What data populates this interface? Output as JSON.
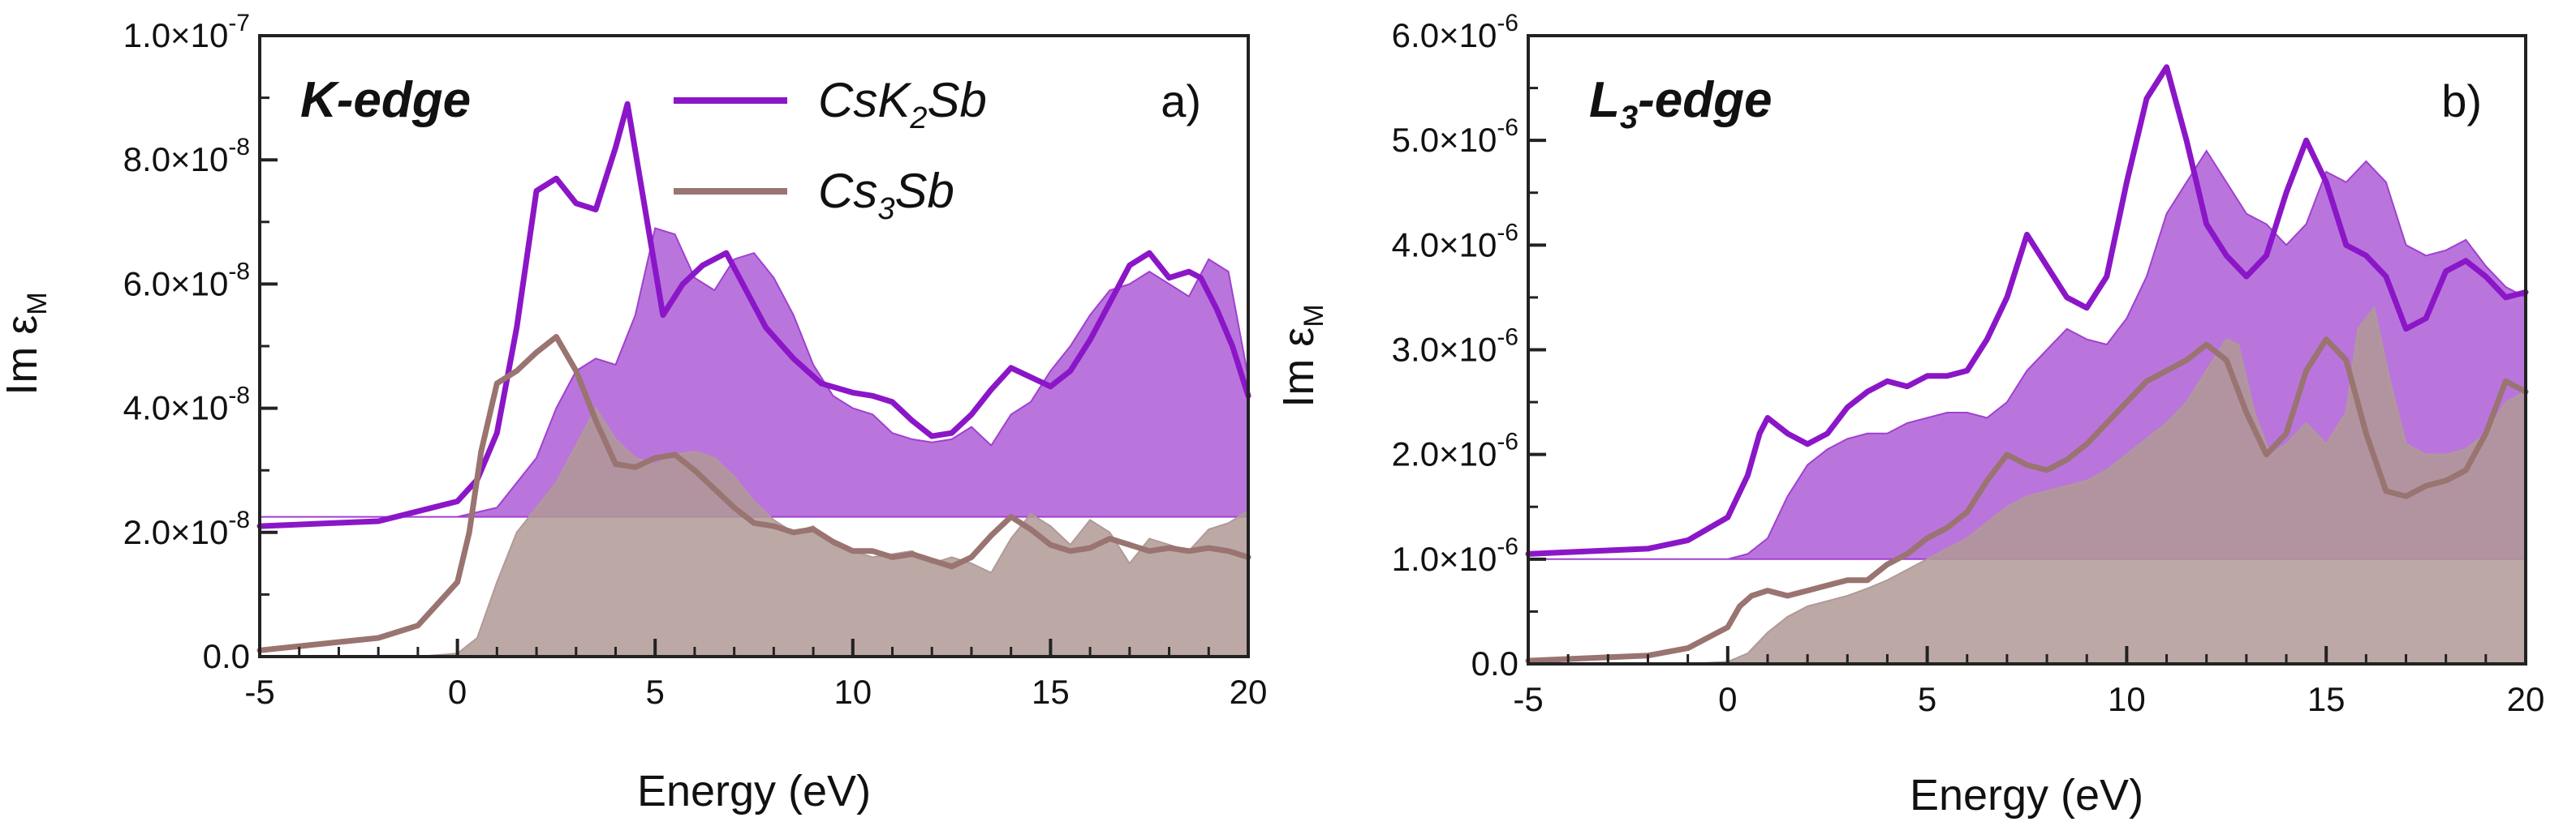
{
  "chart_data": [
    {
      "type": "line",
      "panel_label": "a)",
      "edge_label": {
        "main": "K",
        "sub": "",
        "rest": "-edge"
      },
      "xlabel": "Energy (eV)",
      "ylabel": {
        "main": "Im ε",
        "sub": "M"
      },
      "xlim": [
        -5,
        20
      ],
      "ylim": [
        0,
        1e-07
      ],
      "xticks": [
        -5,
        0,
        5,
        10,
        15,
        20
      ],
      "ytick_labels": [
        {
          "mant": "0.0",
          "exp": ""
        },
        {
          "mant": "2.0×10",
          "exp": "-8"
        },
        {
          "mant": "4.0×10",
          "exp": "-8"
        },
        {
          "mant": "6.0×10",
          "exp": "-8"
        },
        {
          "mant": "8.0×10",
          "exp": "-8"
        },
        {
          "mant": "1.0×10",
          "exp": "-7"
        }
      ],
      "legend": [
        {
          "label_parts": [
            [
              "Cs",
              ""
            ],
            [
              "K",
              ""
            ],
            [
              "2",
              "sub"
            ],
            [
              "Sb",
              ""
            ]
          ],
          "color": "#8B16C8"
        },
        {
          "label_parts": [
            [
              "Cs",
              ""
            ],
            [
              "3",
              "sub"
            ],
            [
              "Sb",
              ""
            ]
          ],
          "color": "#9A7470"
        }
      ],
      "series": [
        {
          "name": "CsK2Sb (line)",
          "kind": "line",
          "color": "#8B16C8",
          "x": [
            -5,
            -2,
            0,
            0.5,
            1,
            1.5,
            2,
            2.5,
            3,
            3.5,
            4,
            4.3,
            4.8,
            5.2,
            5.7,
            6.2,
            6.8,
            7.3,
            7.8,
            8.5,
            9.2,
            10,
            10.5,
            11,
            11.5,
            12,
            12.5,
            13,
            13.5,
            14,
            14.5,
            15,
            15.5,
            16,
            16.5,
            17,
            17.5,
            18,
            18.5,
            18.8,
            19.2,
            19.6,
            20
          ],
          "y": [
            2.1e-08,
            2.18e-08,
            2.5e-08,
            2.85e-08,
            3.6e-08,
            5.3e-08,
            7.5e-08,
            7.7e-08,
            7.3e-08,
            7.2e-08,
            8.2e-08,
            8.9e-08,
            7e-08,
            5.5e-08,
            6e-08,
            6.3e-08,
            6.5e-08,
            5.9e-08,
            5.3e-08,
            4.8e-08,
            4.4e-08,
            4.25e-08,
            4.2e-08,
            4.1e-08,
            3.8e-08,
            3.55e-08,
            3.6e-08,
            3.9e-08,
            4.3e-08,
            4.65e-08,
            4.5e-08,
            4.35e-08,
            4.6e-08,
            5.1e-08,
            5.7e-08,
            6.3e-08,
            6.5e-08,
            6.1e-08,
            6.2e-08,
            6.1e-08,
            5.6e-08,
            5e-08,
            4.2e-08
          ]
        },
        {
          "name": "Cs3Sb (line)",
          "kind": "line",
          "color": "#9A7470",
          "x": [
            -5,
            -2,
            -1,
            0,
            0.3,
            0.6,
            1,
            1.5,
            2,
            2.5,
            3,
            3.5,
            4,
            4.5,
            5,
            5.5,
            6,
            6.5,
            7,
            7.5,
            8,
            8.5,
            9,
            9.5,
            10,
            10.5,
            11,
            11.5,
            12,
            12.5,
            13,
            13.5,
            14,
            14.5,
            15,
            15.5,
            16,
            16.5,
            17,
            17.5,
            18,
            18.5,
            19,
            19.5,
            20
          ],
          "y": [
            1e-09,
            3e-09,
            5e-09,
            1.2e-08,
            2e-08,
            3.3e-08,
            4.4e-08,
            4.6e-08,
            4.9e-08,
            5.15e-08,
            4.6e-08,
            3.8e-08,
            3.1e-08,
            3.05e-08,
            3.2e-08,
            3.25e-08,
            3e-08,
            2.7e-08,
            2.4e-08,
            2.15e-08,
            2.1e-08,
            2e-08,
            2.05e-08,
            1.85e-08,
            1.7e-08,
            1.7e-08,
            1.6e-08,
            1.65e-08,
            1.55e-08,
            1.45e-08,
            1.6e-08,
            1.95e-08,
            2.25e-08,
            2.05e-08,
            1.8e-08,
            1.7e-08,
            1.75e-08,
            1.9e-08,
            1.8e-08,
            1.7e-08,
            1.75e-08,
            1.7e-08,
            1.75e-08,
            1.7e-08,
            1.6e-08
          ]
        },
        {
          "name": "CsK2Sb (shaded)",
          "kind": "area",
          "color": "#A040D0",
          "baseline": 2.25e-08,
          "x": [
            -5,
            0,
            1,
            1.5,
            2,
            2.5,
            3,
            3.5,
            4,
            4.5,
            5,
            5.5,
            6,
            6.5,
            7,
            7.5,
            8,
            8.5,
            9,
            9.5,
            10,
            10.5,
            11,
            11.5,
            12,
            12.5,
            13,
            13.5,
            14,
            14.5,
            15,
            15.5,
            16,
            16.5,
            17,
            17.5,
            18,
            18.5,
            19,
            19.5,
            20
          ],
          "y": [
            2.25e-08,
            2.25e-08,
            2.4e-08,
            2.8e-08,
            3.2e-08,
            4e-08,
            4.6e-08,
            4.8e-08,
            4.7e-08,
            5.5e-08,
            6.9e-08,
            6.8e-08,
            6.1e-08,
            5.9e-08,
            6.4e-08,
            6.5e-08,
            6.1e-08,
            5.5e-08,
            4.7e-08,
            4.2e-08,
            4e-08,
            3.9e-08,
            3.6e-08,
            3.5e-08,
            3.45e-08,
            3.5e-08,
            3.7e-08,
            3.4e-08,
            3.9e-08,
            4.1e-08,
            4.6e-08,
            5e-08,
            5.5e-08,
            5.9e-08,
            6e-08,
            6.2e-08,
            6e-08,
            5.8e-08,
            6.4e-08,
            6.2e-08,
            4.5e-08
          ]
        },
        {
          "name": "Cs3Sb (shaded)",
          "kind": "area",
          "color": "#B09A97",
          "baseline": 0,
          "x": [
            -5,
            -1,
            0,
            0.5,
            1,
            1.5,
            2,
            2.5,
            3,
            3.5,
            4,
            4.5,
            5,
            5.5,
            6,
            6.5,
            7,
            7.5,
            8,
            8.5,
            9,
            9.5,
            10,
            10.5,
            11,
            11.5,
            12,
            12.5,
            13,
            13.5,
            14,
            14.5,
            15,
            15.5,
            16,
            16.5,
            17,
            17.5,
            18,
            18.5,
            19,
            19.5,
            20
          ],
          "y": [
            0,
            0,
            5e-10,
            3e-09,
            1.2e-08,
            2e-08,
            2.4e-08,
            2.8e-08,
            3.4e-08,
            4e-08,
            3.5e-08,
            3.2e-08,
            3.1e-08,
            3.25e-08,
            3.3e-08,
            3.2e-08,
            2.9e-08,
            2.5e-08,
            2.2e-08,
            2e-08,
            2.1e-08,
            1.8e-08,
            1.7e-08,
            1.6e-08,
            1.65e-08,
            1.7e-08,
            1.5e-08,
            1.6e-08,
            1.5e-08,
            1.35e-08,
            1.9e-08,
            2.3e-08,
            2.1e-08,
            1.8e-08,
            2.2e-08,
            2e-08,
            1.5e-08,
            1.9e-08,
            1.8e-08,
            1.7e-08,
            2.05e-08,
            2.15e-08,
            2.35e-08
          ]
        }
      ]
    },
    {
      "type": "line",
      "panel_label": "b)",
      "edge_label": {
        "main": "L",
        "sub": "3",
        "rest": "-edge"
      },
      "xlabel": "Energy (eV)",
      "ylabel": {
        "main": "Im ε",
        "sub": "M"
      },
      "xlim": [
        -5,
        20
      ],
      "ylim": [
        0,
        6e-06
      ],
      "xticks": [
        -5,
        0,
        5,
        10,
        15,
        20
      ],
      "ytick_labels": [
        {
          "mant": "0.0",
          "exp": ""
        },
        {
          "mant": "1.0×10",
          "exp": "-6"
        },
        {
          "mant": "2.0×10",
          "exp": "-6"
        },
        {
          "mant": "3.0×10",
          "exp": "-6"
        },
        {
          "mant": "4.0×10",
          "exp": "-6"
        },
        {
          "mant": "5.0×10",
          "exp": "-6"
        },
        {
          "mant": "6.0×10",
          "exp": "-6"
        }
      ],
      "series": [
        {
          "name": "CsK2Sb (line)",
          "kind": "line",
          "color": "#8B16C8",
          "x": [
            -5,
            -2,
            -1,
            0,
            0.5,
            0.8,
            1,
            1.5,
            2,
            2.5,
            3,
            3.5,
            4,
            4.5,
            5,
            5.5,
            6,
            6.5,
            7,
            7.5,
            8,
            8.5,
            9,
            9.5,
            10,
            10.5,
            11,
            11.5,
            12,
            12.5,
            13,
            13.5,
            14,
            14.5,
            15,
            15.5,
            16,
            16.5,
            17,
            17.5,
            18,
            18.5,
            19,
            19.5,
            20
          ],
          "y": [
            1.05e-06,
            1.1e-06,
            1.18e-06,
            1.4e-06,
            1.8e-06,
            2.2e-06,
            2.35e-06,
            2.2e-06,
            2.1e-06,
            2.2e-06,
            2.45e-06,
            2.6e-06,
            2.7e-06,
            2.65e-06,
            2.75e-06,
            2.75e-06,
            2.8e-06,
            3.1e-06,
            3.5e-06,
            4.1e-06,
            3.8e-06,
            3.5e-06,
            3.4e-06,
            3.7e-06,
            4.6e-06,
            5.4e-06,
            5.7e-06,
            5e-06,
            4.2e-06,
            3.9e-06,
            3.7e-06,
            3.9e-06,
            4.5e-06,
            5e-06,
            4.6e-06,
            4e-06,
            3.9e-06,
            3.7e-06,
            3.2e-06,
            3.3e-06,
            3.75e-06,
            3.85e-06,
            3.7e-06,
            3.5e-06,
            3.55e-06
          ]
        },
        {
          "name": "Cs3Sb (line)",
          "kind": "line",
          "color": "#9A7470",
          "x": [
            -5,
            -2,
            -1,
            0,
            0.3,
            0.6,
            1,
            1.5,
            2,
            2.5,
            3,
            3.5,
            4,
            4.5,
            5,
            5.5,
            6,
            6.5,
            7,
            7.5,
            8,
            8.5,
            9,
            9.5,
            10,
            10.5,
            11,
            11.5,
            12,
            12.5,
            13,
            13.5,
            14,
            14.5,
            15,
            15.5,
            16,
            16.5,
            17,
            17.5,
            18,
            18.5,
            19,
            19.5,
            20
          ],
          "y": [
            3e-08,
            8e-08,
            1.5e-07,
            3.5e-07,
            5.5e-07,
            6.5e-07,
            7e-07,
            6.5e-07,
            7e-07,
            7.5e-07,
            8e-07,
            8e-07,
            9.5e-07,
            1.05e-06,
            1.2e-06,
            1.3e-06,
            1.45e-06,
            1.75e-06,
            2e-06,
            1.9e-06,
            1.85e-06,
            1.95e-06,
            2.1e-06,
            2.3e-06,
            2.5e-06,
            2.7e-06,
            2.8e-06,
            2.9e-06,
            3.05e-06,
            2.9e-06,
            2.4e-06,
            2e-06,
            2.2e-06,
            2.8e-06,
            3.1e-06,
            2.9e-06,
            2.2e-06,
            1.65e-06,
            1.6e-06,
            1.7e-06,
            1.75e-06,
            1.85e-06,
            2.2e-06,
            2.7e-06,
            2.6e-06
          ]
        },
        {
          "name": "CsK2Sb (shaded)",
          "kind": "area",
          "color": "#A040D0",
          "baseline": 1e-06,
          "x": [
            -5,
            0,
            0.5,
            1,
            1.5,
            2,
            2.5,
            3,
            3.5,
            4,
            4.5,
            5,
            5.5,
            6,
            6.5,
            7,
            7.5,
            8,
            8.5,
            9,
            9.5,
            10,
            10.5,
            11,
            11.5,
            12,
            12.5,
            13,
            13.5,
            14,
            14.5,
            15,
            15.5,
            16,
            16.5,
            17,
            17.5,
            18,
            18.5,
            19,
            19.5,
            20
          ],
          "y": [
            1e-06,
            1e-06,
            1.05e-06,
            1.2e-06,
            1.6e-06,
            1.9e-06,
            2.05e-06,
            2.15e-06,
            2.2e-06,
            2.2e-06,
            2.3e-06,
            2.35e-06,
            2.4e-06,
            2.4e-06,
            2.35e-06,
            2.5e-06,
            2.8e-06,
            3e-06,
            3.2e-06,
            3.1e-06,
            3.05e-06,
            3.3e-06,
            3.7e-06,
            4.3e-06,
            4.6e-06,
            4.9e-06,
            4.6e-06,
            4.3e-06,
            4.2e-06,
            4e-06,
            4.2e-06,
            4.7e-06,
            4.6e-06,
            4.8e-06,
            4.6e-06,
            4e-06,
            3.9e-06,
            3.95e-06,
            4.05e-06,
            3.8e-06,
            3.6e-06,
            3.5e-06
          ]
        },
        {
          "name": "Cs3Sb (shaded)",
          "kind": "area",
          "color": "#B09A97",
          "baseline": 0,
          "x": [
            -5,
            -1,
            0,
            0.5,
            1,
            1.5,
            2,
            2.5,
            3,
            3.5,
            4,
            4.5,
            5,
            5.5,
            6,
            6.5,
            7,
            7.5,
            8,
            8.5,
            9,
            9.5,
            10,
            10.5,
            11,
            11.5,
            12,
            12.5,
            12.8,
            13.2,
            13.6,
            14,
            14.5,
            15,
            15.5,
            15.8,
            16.2,
            16.6,
            17,
            17.5,
            18,
            18.5,
            19,
            19.5,
            20
          ],
          "y": [
            0,
            0,
            2e-08,
            1e-07,
            3e-07,
            4.5e-07,
            5.5e-07,
            6e-07,
            6.5e-07,
            7.2e-07,
            8e-07,
            9e-07,
            1e-06,
            1.1e-06,
            1.2e-06,
            1.35e-06,
            1.5e-06,
            1.6e-06,
            1.65e-06,
            1.7e-06,
            1.75e-06,
            1.85e-06,
            2e-06,
            2.15e-06,
            2.3e-06,
            2.5e-06,
            2.8e-06,
            3.1e-06,
            3.05e-06,
            2.4e-06,
            2e-06,
            2.1e-06,
            2.3e-06,
            2.1e-06,
            2.4e-06,
            3.2e-06,
            3.4e-06,
            2.7e-06,
            2.1e-06,
            2e-06,
            2e-06,
            2.05e-06,
            2.2e-06,
            2.5e-06,
            2.6e-06
          ]
        }
      ]
    }
  ]
}
